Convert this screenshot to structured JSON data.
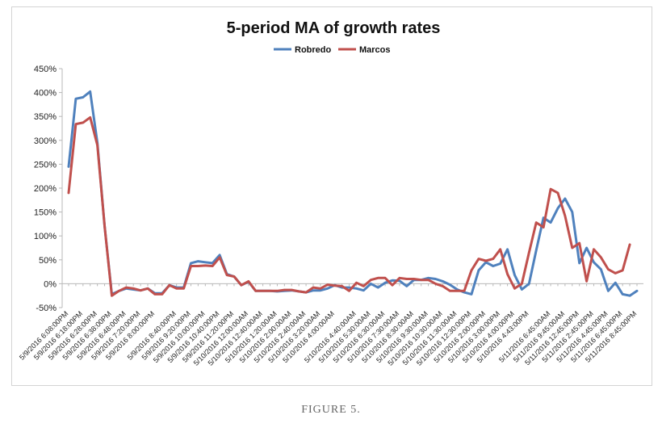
{
  "figure": {
    "caption": "FIGURE 5."
  },
  "chart_data": {
    "type": "line",
    "title": "5-period MA of growth rates",
    "xlabel": "",
    "ylabel": "",
    "ylim": [
      -50,
      450
    ],
    "y_ticks": [
      "450%",
      "400%",
      "350%",
      "300%",
      "250%",
      "200%",
      "150%",
      "100%",
      "50%",
      "0%",
      "-50%"
    ],
    "y_tick_values": [
      450,
      400,
      350,
      300,
      250,
      200,
      150,
      100,
      50,
      0,
      -50
    ],
    "grid": false,
    "legend_position": "top",
    "colors": {
      "Robredo": "#4f81bd",
      "Marcos": "#c0504d",
      "axis": "#b8b8b8"
    },
    "x_tick_labels": [
      "5/9/2016 6:08:00PM",
      "5/9/2016 6:18:00PM",
      "5/9/2016 6:28:00PM",
      "5/9/2016 6:38:00PM",
      "5/9/2016 6:48:00PM",
      "5/9/2016 7:20:00PM",
      "5/9/2016 8:00:00PM",
      "5/9/2016 8:40:00PM",
      "5/9/2016 9:20:00PM",
      "5/9/2016 10:00:00PM",
      "5/9/2016 10:40:00PM",
      "5/9/2016 11:20:00PM",
      "5/10/2016 12:00:00AM",
      "5/10/2016 12:40:00AM",
      "5/10/2016 1:20:00AM",
      "5/10/2016 2:00:00AM",
      "5/10/2016 2:40:00AM",
      "5/10/2016 3:20:00AM",
      "5/10/2016 4:00:00AM",
      "5/10/2016 4:40:00AM",
      "5/10/2016 5:30:00AM",
      "5/10/2016 6:30:00AM",
      "5/10/2016 7:30:00AM",
      "5/10/2016 8:30:00AM",
      "5/10/2016 9:30:00AM",
      "5/10/2016 10:30:00AM",
      "5/10/2016 11:30:00AM",
      "5/10/2016 12:30:00PM",
      "5/10/2016 2:00:00PM",
      "5/10/2016 3:00:00PM",
      "5/10/2016 4:00:00PM",
      "5/10/2016 4:43:00PM",
      "5/11/2016 6:45:00AM",
      "5/11/2016 9:45:00AM",
      "5/11/2016 12:45:00PM",
      "5/11/2016 2:45:00PM",
      "5/11/2016 4:45:00PM",
      "5/11/2016 6:45:00PM",
      "5/11/2016 8:45:00PM"
    ],
    "series": [
      {
        "name": "Robredo",
        "values": [
          245,
          387,
          390,
          402,
          295,
          120,
          -22,
          -15,
          -10,
          -12,
          -14,
          -10,
          -20,
          -20,
          -3,
          -8,
          -8,
          43,
          47,
          45,
          43,
          60,
          20,
          15,
          -3,
          4,
          -15,
          -15,
          -15,
          -16,
          -15,
          -14,
          -16,
          -18,
          -14,
          -14,
          -10,
          -3,
          -8,
          -8,
          -10,
          -14,
          0,
          -8,
          2,
          7,
          6,
          -5,
          8,
          8,
          12,
          10,
          5,
          -2,
          -12,
          -18,
          -22,
          28,
          45,
          37,
          42,
          72,
          18,
          -12,
          0,
          70,
          138,
          128,
          158,
          178,
          150,
          43,
          75,
          45,
          30,
          -15,
          2,
          -22,
          -25,
          -15
        ]
      },
      {
        "name": "Marcos",
        "values": [
          190,
          334,
          337,
          348,
          290,
          120,
          -25,
          -15,
          -8,
          -10,
          -14,
          -10,
          -22,
          -22,
          -3,
          -10,
          -10,
          37,
          37,
          38,
          37,
          55,
          18,
          15,
          -3,
          5,
          -15,
          -15,
          -15,
          -15,
          -13,
          -13,
          -16,
          -18,
          -8,
          -10,
          -2,
          -4,
          -5,
          -15,
          2,
          -5,
          8,
          12,
          12,
          -3,
          12,
          10,
          10,
          8,
          8,
          0,
          -5,
          -15,
          -15,
          -15,
          28,
          52,
          48,
          52,
          72,
          20,
          -10,
          0,
          65,
          128,
          118,
          198,
          190,
          142,
          75,
          85,
          5,
          72,
          55,
          30,
          22,
          28,
          82
        ]
      }
    ]
  }
}
